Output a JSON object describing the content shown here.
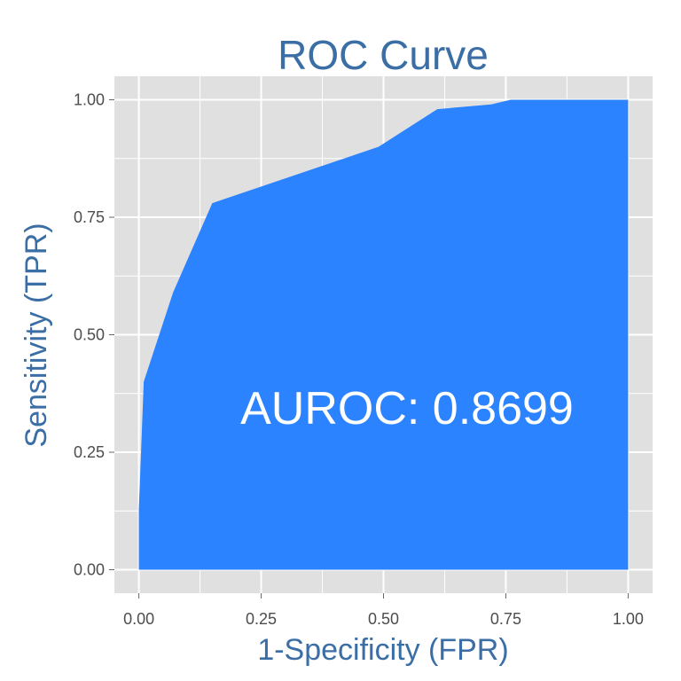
{
  "chart_data": {
    "type": "area",
    "title": "ROC Curve",
    "xlabel": "1-Specificity (FPR)",
    "ylabel": "Sensitivity (TPR)",
    "xlim": [
      -0.05,
      1.05
    ],
    "ylim": [
      -0.05,
      1.05
    ],
    "x_ticks": [
      0.0,
      0.25,
      0.5,
      0.75,
      1.0
    ],
    "x_tick_labels": [
      "0.00",
      "0.25",
      "0.50",
      "0.75",
      "1.00"
    ],
    "y_ticks": [
      0.0,
      0.25,
      0.5,
      0.75,
      1.0
    ],
    "y_tick_labels": [
      "0.00",
      "0.25",
      "0.50",
      "0.75",
      "1.00"
    ],
    "grid": true,
    "points": [
      {
        "x": 0.0,
        "y": 0.0
      },
      {
        "x": 0.0,
        "y": 0.13
      },
      {
        "x": 0.01,
        "y": 0.4
      },
      {
        "x": 0.07,
        "y": 0.59
      },
      {
        "x": 0.15,
        "y": 0.78
      },
      {
        "x": 0.49,
        "y": 0.9
      },
      {
        "x": 0.61,
        "y": 0.98
      },
      {
        "x": 0.72,
        "y": 0.99
      },
      {
        "x": 0.76,
        "y": 1.0
      },
      {
        "x": 1.0,
        "y": 1.0
      },
      {
        "x": 1.0,
        "y": 0.0
      }
    ],
    "annotation": "AUROC: 0.8699",
    "colors": {
      "fill": "#2b83ff",
      "panel": "#e0e0e0",
      "grid": "#ffffff",
      "title": "#3a6ea5",
      "annotation": "#ffffff"
    }
  }
}
